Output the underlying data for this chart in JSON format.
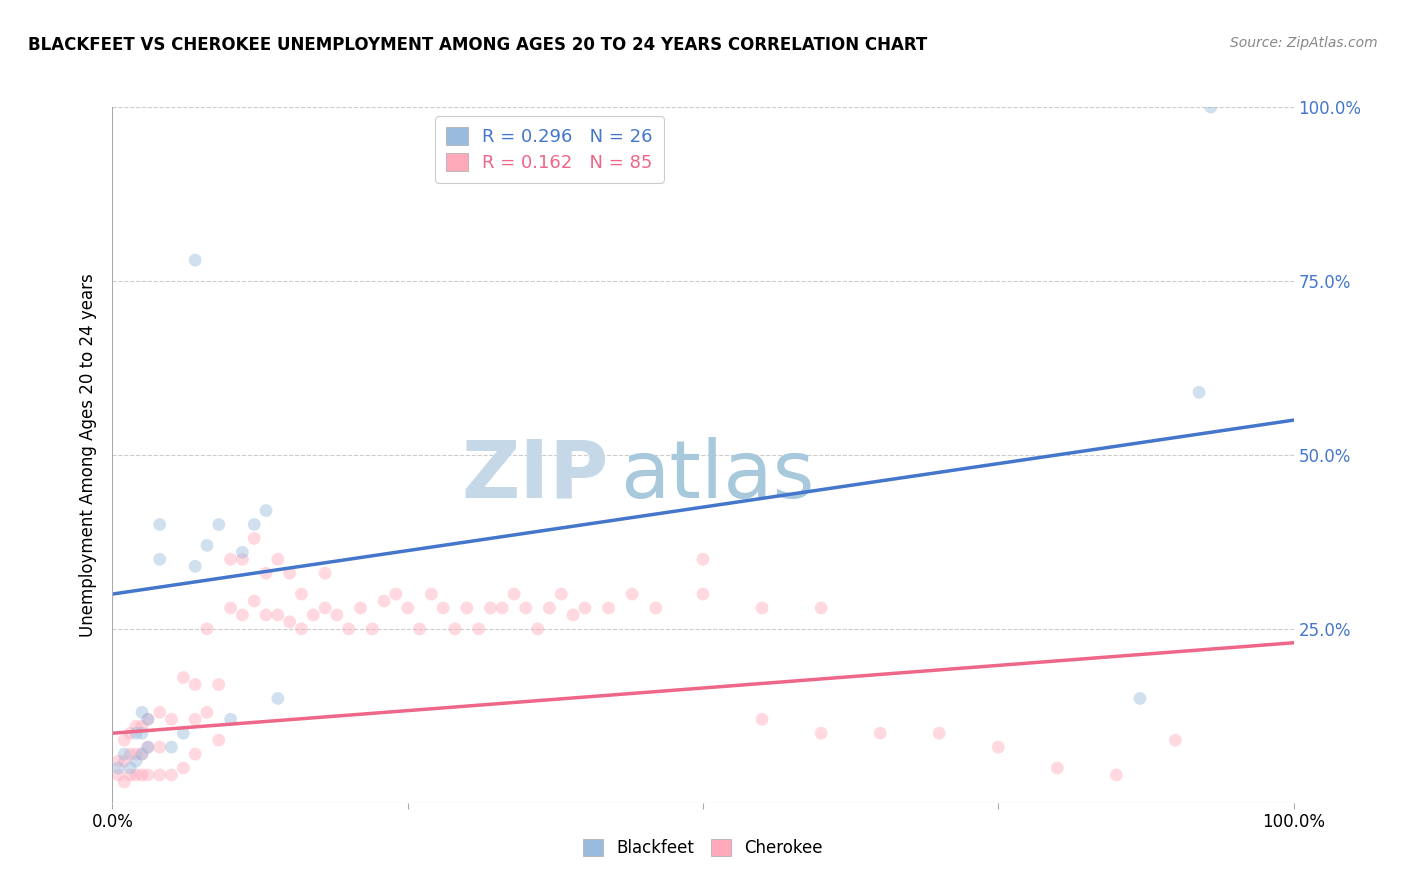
{
  "title": "BLACKFEET VS CHEROKEE UNEMPLOYMENT AMONG AGES 20 TO 24 YEARS CORRELATION CHART",
  "source": "Source: ZipAtlas.com",
  "ylabel": "Unemployment Among Ages 20 to 24 years",
  "xlim": [
    0,
    1
  ],
  "ylim": [
    0,
    1
  ],
  "blue_color": "#99BBDD",
  "pink_color": "#FFAABB",
  "blue_line_color": "#4477CC",
  "pink_line_color": "#EE6688",
  "watermark_zip_color": "#C5D8E8",
  "watermark_atlas_color": "#A8C8DC",
  "background_color": "#FFFFFF",
  "grid_color": "#CCCCCC",
  "marker_size": 85,
  "marker_alpha": 0.45,
  "blue_intercept": 0.3,
  "blue_slope": 0.25,
  "pink_intercept": 0.1,
  "pink_slope": 0.13,
  "legend_blue_R": "0.296",
  "legend_blue_N": "26",
  "legend_pink_R": "0.162",
  "legend_pink_N": "85",
  "blackfeet_x": [
    0.005,
    0.01,
    0.015,
    0.02,
    0.02,
    0.025,
    0.025,
    0.025,
    0.03,
    0.03,
    0.04,
    0.04,
    0.05,
    0.06,
    0.07,
    0.07,
    0.08,
    0.09,
    0.1,
    0.11,
    0.12,
    0.13,
    0.14,
    0.87,
    0.92,
    0.93
  ],
  "blackfeet_y": [
    0.05,
    0.07,
    0.05,
    0.06,
    0.1,
    0.07,
    0.1,
    0.13,
    0.08,
    0.12,
    0.35,
    0.4,
    0.08,
    0.1,
    0.78,
    0.34,
    0.37,
    0.4,
    0.12,
    0.36,
    0.4,
    0.42,
    0.15,
    0.15,
    0.59,
    1.0
  ],
  "cherokee_x": [
    0.005,
    0.005,
    0.01,
    0.01,
    0.01,
    0.015,
    0.015,
    0.015,
    0.02,
    0.02,
    0.02,
    0.025,
    0.025,
    0.025,
    0.03,
    0.03,
    0.03,
    0.04,
    0.04,
    0.04,
    0.05,
    0.05,
    0.06,
    0.06,
    0.07,
    0.07,
    0.07,
    0.08,
    0.08,
    0.09,
    0.09,
    0.1,
    0.1,
    0.11,
    0.11,
    0.12,
    0.12,
    0.13,
    0.13,
    0.14,
    0.14,
    0.15,
    0.15,
    0.16,
    0.16,
    0.17,
    0.18,
    0.18,
    0.19,
    0.2,
    0.21,
    0.22,
    0.23,
    0.24,
    0.25,
    0.26,
    0.27,
    0.28,
    0.29,
    0.3,
    0.31,
    0.32,
    0.33,
    0.34,
    0.35,
    0.36,
    0.37,
    0.38,
    0.39,
    0.4,
    0.42,
    0.44,
    0.46,
    0.5,
    0.55,
    0.6,
    0.65,
    0.7,
    0.75,
    0.8,
    0.85,
    0.9,
    0.5,
    0.55,
    0.6
  ],
  "cherokee_y": [
    0.04,
    0.06,
    0.03,
    0.06,
    0.09,
    0.04,
    0.07,
    0.1,
    0.04,
    0.07,
    0.11,
    0.04,
    0.07,
    0.11,
    0.04,
    0.08,
    0.12,
    0.04,
    0.08,
    0.13,
    0.04,
    0.12,
    0.05,
    0.18,
    0.07,
    0.12,
    0.17,
    0.13,
    0.25,
    0.09,
    0.17,
    0.28,
    0.35,
    0.27,
    0.35,
    0.29,
    0.38,
    0.27,
    0.33,
    0.27,
    0.35,
    0.26,
    0.33,
    0.25,
    0.3,
    0.27,
    0.28,
    0.33,
    0.27,
    0.25,
    0.28,
    0.25,
    0.29,
    0.3,
    0.28,
    0.25,
    0.3,
    0.28,
    0.25,
    0.28,
    0.25,
    0.28,
    0.28,
    0.3,
    0.28,
    0.25,
    0.28,
    0.3,
    0.27,
    0.28,
    0.28,
    0.3,
    0.28,
    0.3,
    0.28,
    0.28,
    0.1,
    0.1,
    0.08,
    0.05,
    0.04,
    0.09,
    0.35,
    0.12,
    0.1
  ]
}
